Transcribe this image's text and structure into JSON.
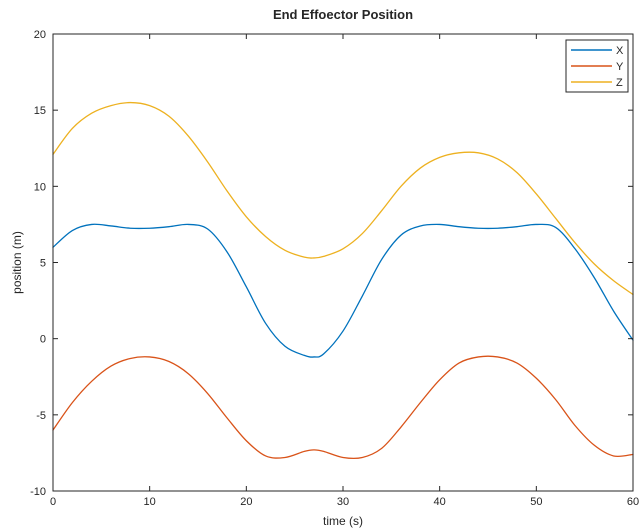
{
  "chart_data": {
    "type": "line",
    "title": "End Effoector Position",
    "xlabel": "time (s)",
    "ylabel": "position (m)",
    "xlim": [
      0,
      60
    ],
    "ylim": [
      -10,
      20
    ],
    "xticks": [
      "0",
      "10",
      "20",
      "30",
      "40",
      "50",
      "60"
    ],
    "yticks": [
      "-10",
      "-5",
      "0",
      "5",
      "10",
      "15",
      "20"
    ],
    "grid": false,
    "legend_position": "top-right",
    "x": [
      0,
      2,
      4,
      6,
      8,
      10,
      12,
      14,
      16,
      18,
      20,
      22,
      24,
      26,
      27,
      28,
      30,
      32,
      34,
      36,
      38,
      40,
      42,
      44,
      46,
      48,
      50,
      52,
      54,
      56,
      58,
      60
    ],
    "series": [
      {
        "name": "X",
        "color": "#0072BD",
        "values": [
          6.0,
          7.1,
          7.5,
          7.4,
          7.25,
          7.25,
          7.35,
          7.5,
          7.2,
          5.7,
          3.4,
          1.0,
          -0.5,
          -1.1,
          -1.2,
          -1.0,
          0.5,
          2.8,
          5.2,
          6.8,
          7.4,
          7.5,
          7.35,
          7.25,
          7.25,
          7.35,
          7.5,
          7.3,
          5.9,
          4.0,
          1.8,
          -0.1
        ]
      },
      {
        "name": "Y",
        "color": "#D95319",
        "values": [
          -6.0,
          -4.2,
          -2.8,
          -1.8,
          -1.3,
          -1.2,
          -1.5,
          -2.3,
          -3.6,
          -5.2,
          -6.7,
          -7.7,
          -7.8,
          -7.4,
          -7.3,
          -7.4,
          -7.8,
          -7.8,
          -7.2,
          -5.8,
          -4.2,
          -2.7,
          -1.6,
          -1.2,
          -1.2,
          -1.6,
          -2.6,
          -4.0,
          -5.7,
          -7.0,
          -7.7,
          -7.6
        ]
      },
      {
        "name": "Z",
        "color": "#EDB120",
        "values": [
          12.1,
          13.8,
          14.8,
          15.3,
          15.5,
          15.3,
          14.6,
          13.3,
          11.6,
          9.7,
          8.0,
          6.7,
          5.8,
          5.35,
          5.3,
          5.4,
          5.9,
          6.9,
          8.4,
          10.0,
          11.2,
          11.9,
          12.2,
          12.2,
          11.8,
          10.9,
          9.5,
          7.9,
          6.3,
          4.9,
          3.8,
          2.9
        ]
      }
    ]
  }
}
